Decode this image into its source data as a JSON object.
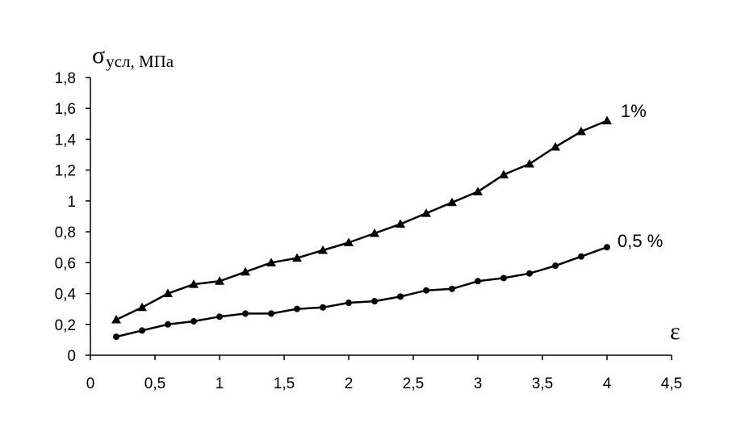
{
  "chart_data": {
    "type": "line",
    "ylabel": "σ",
    "ylabel_sub": "усл, МПа",
    "xlabel": "ε",
    "xlim": [
      0,
      4.5
    ],
    "ylim": [
      0,
      1.8
    ],
    "x_ticks": [
      0,
      0.5,
      1,
      1.5,
      2,
      2.5,
      3,
      3.5,
      4,
      4.5
    ],
    "x_tick_labels": [
      "0",
      "0,5",
      "1",
      "1,5",
      "2",
      "2,5",
      "3",
      "3,5",
      "4",
      "4,5"
    ],
    "y_ticks": [
      0,
      0.2,
      0.4,
      0.6,
      0.8,
      1,
      1.2,
      1.4,
      1.6,
      1.8
    ],
    "y_tick_labels": [
      "0",
      "0,2",
      "0,4",
      "0,6",
      "0,8",
      "1",
      "1,2",
      "1,4",
      "1,6",
      "1,8"
    ],
    "grid": false,
    "x": [
      0.2,
      0.4,
      0.6,
      0.8,
      1.0,
      1.2,
      1.4,
      1.6,
      1.8,
      2.0,
      2.2,
      2.4,
      2.6,
      2.8,
      3.0,
      3.2,
      3.4,
      3.6,
      3.8,
      4.0
    ],
    "series": [
      {
        "name": "1%",
        "marker": "triangle",
        "values": [
          0.23,
          0.31,
          0.4,
          0.46,
          0.48,
          0.54,
          0.6,
          0.63,
          0.68,
          0.73,
          0.79,
          0.85,
          0.92,
          0.99,
          1.06,
          1.17,
          1.24,
          1.35,
          1.45,
          1.52
        ]
      },
      {
        "name": "0,5 %",
        "marker": "circle",
        "values": [
          0.12,
          0.16,
          0.2,
          0.22,
          0.25,
          0.27,
          0.27,
          0.3,
          0.31,
          0.34,
          0.35,
          0.38,
          0.42,
          0.43,
          0.48,
          0.5,
          0.53,
          0.58,
          0.64,
          0.7
        ]
      }
    ],
    "colors": {
      "line": "#000000",
      "axis": "#000000"
    }
  }
}
